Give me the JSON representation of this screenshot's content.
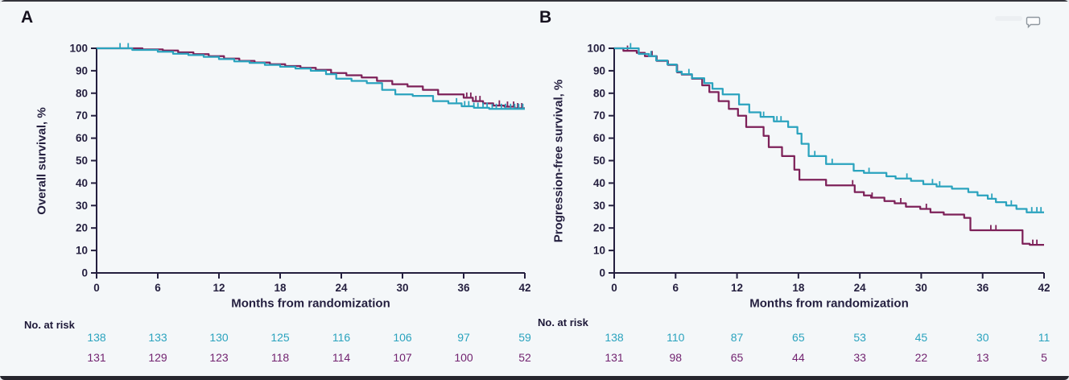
{
  "page": {
    "background": "#f4f7f9",
    "axis_color": "#241f3f"
  },
  "icons": {
    "comment_icon": "speech-bubble"
  },
  "chart_data": [
    {
      "type": "line",
      "panel_label": "A",
      "ylabel": "Overall survival, %",
      "xlabel": "Months from randomization",
      "at_risk_label": "No. at risk",
      "xlim": [
        0,
        42
      ],
      "ylim": [
        0,
        100
      ],
      "xticks": [
        0,
        6,
        12,
        18,
        24,
        30,
        36,
        42
      ],
      "yticks": [
        0,
        10,
        20,
        30,
        40,
        50,
        60,
        70,
        80,
        90,
        100
      ],
      "grid": false,
      "legend": "none",
      "series": [
        {
          "name": "teal-arm",
          "color": "#2AA3BE",
          "risk_text_color": "#2AA3BE",
          "at_risk": [
            138,
            133,
            130,
            125,
            116,
            106,
            97,
            59
          ],
          "steps": [
            [
              0,
              100
            ],
            [
              3.5,
              100
            ],
            [
              3.5,
              99.3
            ],
            [
              6,
              99.3
            ],
            [
              6,
              98.5
            ],
            [
              7.5,
              98.5
            ],
            [
              7.5,
              97.6
            ],
            [
              9,
              97.6
            ],
            [
              9,
              97
            ],
            [
              10.5,
              97
            ],
            [
              10.5,
              96.2
            ],
            [
              12,
              96.2
            ],
            [
              12,
              95.2
            ],
            [
              13.5,
              95.2
            ],
            [
              13.5,
              94.2
            ],
            [
              15,
              94.2
            ],
            [
              15,
              93.5
            ],
            [
              16.5,
              93.5
            ],
            [
              16.5,
              92.6
            ],
            [
              18,
              92.6
            ],
            [
              18,
              91.8
            ],
            [
              19.5,
              91.8
            ],
            [
              19.5,
              91
            ],
            [
              21,
              91
            ],
            [
              21,
              90
            ],
            [
              22.5,
              90
            ],
            [
              22.5,
              88.5
            ],
            [
              23.5,
              88.5
            ],
            [
              23.5,
              86.5
            ],
            [
              25,
              86.5
            ],
            [
              25,
              85.5
            ],
            [
              26.5,
              85.5
            ],
            [
              26.5,
              84.5
            ],
            [
              28,
              84.5
            ],
            [
              28,
              81.5
            ],
            [
              29.3,
              81.5
            ],
            [
              29.3,
              79.5
            ],
            [
              31,
              79.5
            ],
            [
              31,
              78.8
            ],
            [
              33,
              78.8
            ],
            [
              33,
              76.5
            ],
            [
              34.5,
              76.5
            ],
            [
              34.5,
              75.5
            ],
            [
              35.8,
              75.5
            ],
            [
              35.8,
              74.2
            ],
            [
              37,
              74.2
            ],
            [
              37,
              73.5
            ],
            [
              38.5,
              73.5
            ],
            [
              38.5,
              73
            ],
            [
              42,
              73
            ]
          ],
          "censor_marks": [
            2.3,
            3.1,
            35.3,
            36.1,
            36.5,
            37,
            37.4,
            37.9,
            38.3,
            38.8,
            39.2,
            39.7,
            40.1,
            40.6,
            41,
            41.4,
            41.8
          ]
        },
        {
          "name": "maroon-arm",
          "color": "#7D2159",
          "risk_text_color": "#722370",
          "at_risk": [
            131,
            129,
            123,
            118,
            114,
            107,
            100,
            52
          ],
          "steps": [
            [
              0,
              100
            ],
            [
              4.5,
              100
            ],
            [
              4.5,
              99.5
            ],
            [
              6.5,
              99.5
            ],
            [
              6.5,
              99
            ],
            [
              8,
              99
            ],
            [
              8,
              98.2
            ],
            [
              9.5,
              98.2
            ],
            [
              9.5,
              97.4
            ],
            [
              11,
              97.4
            ],
            [
              11,
              96.5
            ],
            [
              12.5,
              96.5
            ],
            [
              12.5,
              95.4
            ],
            [
              14,
              95.4
            ],
            [
              14,
              94.4
            ],
            [
              15.5,
              94.4
            ],
            [
              15.5,
              93.7
            ],
            [
              17,
              93.7
            ],
            [
              17,
              92.9
            ],
            [
              18.5,
              92.9
            ],
            [
              18.5,
              92.1
            ],
            [
              20,
              92.1
            ],
            [
              20,
              91.3
            ],
            [
              21.5,
              91.3
            ],
            [
              21.5,
              90.4
            ],
            [
              23,
              90.4
            ],
            [
              23,
              89
            ],
            [
              24.5,
              89
            ],
            [
              24.5,
              88
            ],
            [
              26,
              88
            ],
            [
              26,
              87
            ],
            [
              27.5,
              87
            ],
            [
              27.5,
              85.5
            ],
            [
              29,
              85.5
            ],
            [
              29,
              84
            ],
            [
              30.5,
              84
            ],
            [
              30.5,
              83
            ],
            [
              32,
              83
            ],
            [
              32,
              81.5
            ],
            [
              33.5,
              81.5
            ],
            [
              33.5,
              79.5
            ],
            [
              36,
              79.5
            ],
            [
              36,
              78
            ],
            [
              36.9,
              78
            ],
            [
              36.9,
              76.5
            ],
            [
              37.9,
              76.5
            ],
            [
              37.9,
              75.5
            ],
            [
              38.9,
              75.5
            ],
            [
              38.9,
              74.5
            ],
            [
              40,
              74.5
            ],
            [
              40,
              74
            ],
            [
              41,
              74
            ],
            [
              41,
              73.3
            ],
            [
              42,
              73.3
            ]
          ],
          "censor_marks": [
            36.3,
            36.7,
            37.2,
            37.6,
            39.5,
            40.3,
            40.9,
            41.3,
            41.7
          ]
        }
      ]
    },
    {
      "type": "line",
      "panel_label": "B",
      "ylabel": "Progression-free survival, %",
      "xlabel": "Months from randomization",
      "at_risk_label": "No. at risk",
      "xlim": [
        0,
        42
      ],
      "ylim": [
        0,
        100
      ],
      "xticks": [
        0,
        6,
        12,
        18,
        24,
        30,
        36,
        42
      ],
      "yticks": [
        0,
        10,
        20,
        30,
        40,
        50,
        60,
        70,
        80,
        90,
        100
      ],
      "grid": false,
      "legend": "none",
      "series": [
        {
          "name": "teal-arm",
          "color": "#2AA3BE",
          "risk_text_color": "#2AA3BE",
          "at_risk": [
            138,
            110,
            87,
            65,
            53,
            45,
            30,
            11
          ],
          "steps": [
            [
              0,
              100
            ],
            [
              2.4,
              100
            ],
            [
              2.4,
              97.5
            ],
            [
              3.4,
              97.5
            ],
            [
              3.4,
              96.5
            ],
            [
              4.1,
              96.5
            ],
            [
              4.1,
              94.6
            ],
            [
              5.2,
              94.6
            ],
            [
              5.2,
              92.8
            ],
            [
              6.1,
              92.8
            ],
            [
              6.1,
              89.6
            ],
            [
              6.6,
              89.6
            ],
            [
              6.6,
              88.5
            ],
            [
              7.6,
              88.5
            ],
            [
              7.6,
              86.7
            ],
            [
              8.8,
              86.7
            ],
            [
              8.8,
              84.5
            ],
            [
              9.6,
              84.5
            ],
            [
              9.6,
              82
            ],
            [
              10.6,
              82
            ],
            [
              10.6,
              79.5
            ],
            [
              12.2,
              79.5
            ],
            [
              12.2,
              75
            ],
            [
              13.2,
              75
            ],
            [
              13.2,
              71.5
            ],
            [
              14.3,
              71.5
            ],
            [
              14.3,
              69.5
            ],
            [
              15.6,
              69.5
            ],
            [
              15.6,
              67.5
            ],
            [
              17,
              67.5
            ],
            [
              17,
              65
            ],
            [
              17.9,
              65
            ],
            [
              17.9,
              62
            ],
            [
              18.3,
              62
            ],
            [
              18.3,
              57.5
            ],
            [
              19,
              57.5
            ],
            [
              19,
              52
            ],
            [
              20.7,
              52
            ],
            [
              20.7,
              48.5
            ],
            [
              23.4,
              48.5
            ],
            [
              23.4,
              45.5
            ],
            [
              24.4,
              45.5
            ],
            [
              24.4,
              44.5
            ],
            [
              26.6,
              44.5
            ],
            [
              26.6,
              43
            ],
            [
              27.5,
              43
            ],
            [
              27.5,
              42
            ],
            [
              29,
              42
            ],
            [
              29,
              41
            ],
            [
              30.2,
              41
            ],
            [
              30.2,
              39.5
            ],
            [
              31.5,
              39.5
            ],
            [
              31.5,
              38.5
            ],
            [
              33,
              38.5
            ],
            [
              33,
              37.5
            ],
            [
              34.6,
              37.5
            ],
            [
              34.6,
              36
            ],
            [
              35.5,
              36
            ],
            [
              35.5,
              34.5
            ],
            [
              36.5,
              34.5
            ],
            [
              36.5,
              33
            ],
            [
              37.3,
              33
            ],
            [
              37.3,
              31.5
            ],
            [
              38.3,
              31.5
            ],
            [
              38.3,
              30
            ],
            [
              39.3,
              30
            ],
            [
              39.3,
              28.5
            ],
            [
              40.3,
              28.5
            ],
            [
              40.3,
              27
            ],
            [
              42,
              27
            ]
          ],
          "censor_marks": [
            1.6,
            3.6,
            7.3,
            14.6,
            15.9,
            16.3,
            19.6,
            21.3,
            24.9,
            28.6,
            31.1,
            31.8,
            36.9,
            38.8,
            40.8,
            41.3,
            41.7
          ]
        },
        {
          "name": "maroon-arm",
          "color": "#7D2159",
          "risk_text_color": "#722370",
          "at_risk": [
            131,
            98,
            65,
            44,
            33,
            22,
            13,
            5
          ],
          "steps": [
            [
              0,
              100
            ],
            [
              0.9,
              100
            ],
            [
              0.9,
              98.9
            ],
            [
              2.2,
              98.9
            ],
            [
              2.2,
              98
            ],
            [
              3,
              98
            ],
            [
              3,
              96.5
            ],
            [
              4.15,
              96.5
            ],
            [
              4.15,
              94.4
            ],
            [
              5.25,
              94.4
            ],
            [
              5.25,
              92.6
            ],
            [
              6.15,
              92.6
            ],
            [
              6.15,
              89.3
            ],
            [
              6.6,
              89.3
            ],
            [
              6.6,
              88.3
            ],
            [
              7.6,
              88.3
            ],
            [
              7.6,
              86.5
            ],
            [
              8.6,
              86.5
            ],
            [
              8.6,
              83.5
            ],
            [
              9.3,
              83.5
            ],
            [
              9.3,
              80.5
            ],
            [
              10.2,
              80.5
            ],
            [
              10.2,
              76.5
            ],
            [
              11.2,
              76.5
            ],
            [
              11.2,
              73
            ],
            [
              12.1,
              73
            ],
            [
              12.1,
              70
            ],
            [
              12.9,
              70
            ],
            [
              12.9,
              65
            ],
            [
              14.6,
              65
            ],
            [
              14.6,
              61
            ],
            [
              15.1,
              61
            ],
            [
              15.1,
              56
            ],
            [
              16.4,
              56
            ],
            [
              16.4,
              52
            ],
            [
              17.6,
              52
            ],
            [
              17.6,
              46
            ],
            [
              18.1,
              46
            ],
            [
              18.1,
              41.5
            ],
            [
              20.7,
              41.5
            ],
            [
              20.7,
              39
            ],
            [
              23.5,
              39
            ],
            [
              23.5,
              36
            ],
            [
              24.4,
              36
            ],
            [
              24.4,
              34.5
            ],
            [
              25.1,
              34.5
            ],
            [
              25.1,
              33.5
            ],
            [
              26.4,
              33.5
            ],
            [
              26.4,
              32
            ],
            [
              27.4,
              32
            ],
            [
              27.4,
              31
            ],
            [
              28.5,
              31
            ],
            [
              28.5,
              29.5
            ],
            [
              29.9,
              29.5
            ],
            [
              29.9,
              28.5
            ],
            [
              30.9,
              28.5
            ],
            [
              30.9,
              27
            ],
            [
              32.2,
              27
            ],
            [
              32.2,
              26
            ],
            [
              34.2,
              26
            ],
            [
              34.2,
              24.5
            ],
            [
              34.8,
              24.5
            ],
            [
              34.8,
              19
            ],
            [
              39.9,
              19
            ],
            [
              39.9,
              13
            ],
            [
              40.6,
              13
            ],
            [
              40.6,
              12.5
            ],
            [
              42,
              12.5
            ]
          ],
          "censor_marks": [
            1.3,
            3.7,
            23.3,
            25.2,
            28,
            30.5,
            36.8,
            37.3,
            40.9,
            41.3
          ]
        }
      ]
    }
  ]
}
